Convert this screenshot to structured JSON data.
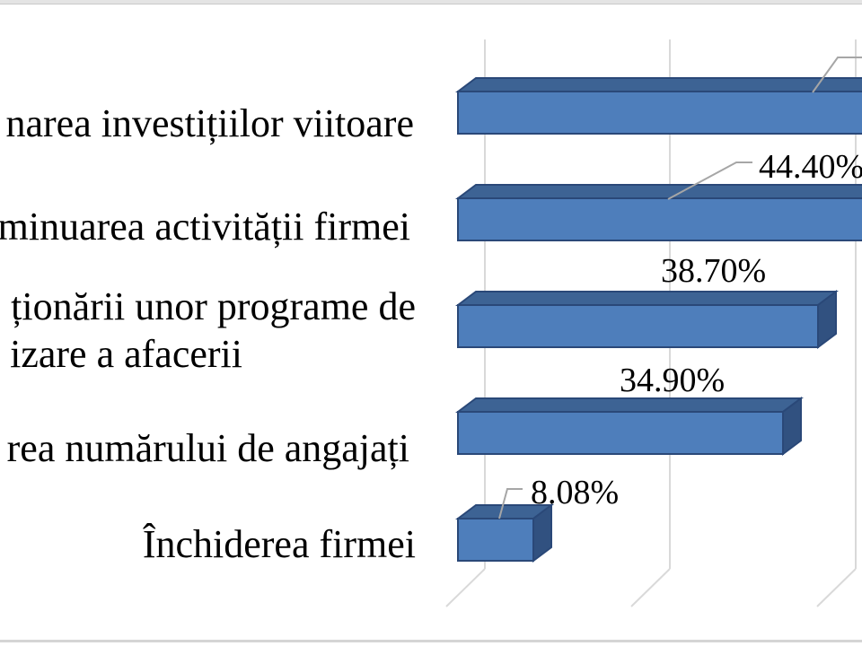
{
  "page": {
    "background": "#FFFFFF",
    "top_border_color": "#E4E4E4",
    "bottom_border_color": "#D5D5D5"
  },
  "chart_data": {
    "type": "bar",
    "orientation": "horizontal",
    "style": "3d-cuboid-bars",
    "title": "",
    "legend": "none",
    "category_lines": [
      [
        "narea investițiilor viitoare"
      ],
      [
        "minuarea activității firmei"
      ],
      [
        "ționării unor programe de",
        "izare a afacerii"
      ],
      [
        "rea numărului de angajați"
      ],
      [
        "Închiderea firmei"
      ]
    ],
    "values_pct": [
      null,
      44.4,
      38.7,
      34.9,
      8.08
    ],
    "data_labels": [
      "",
      "44.40%",
      "38.70%",
      "34.90%",
      "8.08%"
    ],
    "first_bar_note": "topmost bar and its data label run off the right edge of the image; only its gray leader line is visible",
    "crop_note": "category label text is cropped at the left edge of the image",
    "gridlines": {
      "count_visible": 3,
      "color": "#D9D9D9",
      "direction": "vertical-on-back-wall-with-floor-diagonals"
    },
    "colors": {
      "bar_front": "#4E7EBB",
      "bar_top": "#3D6394",
      "bar_side": "#315180",
      "bar_stroke": "#2A4878",
      "leader_line": "#A6A6A6",
      "text": "#000000"
    }
  }
}
